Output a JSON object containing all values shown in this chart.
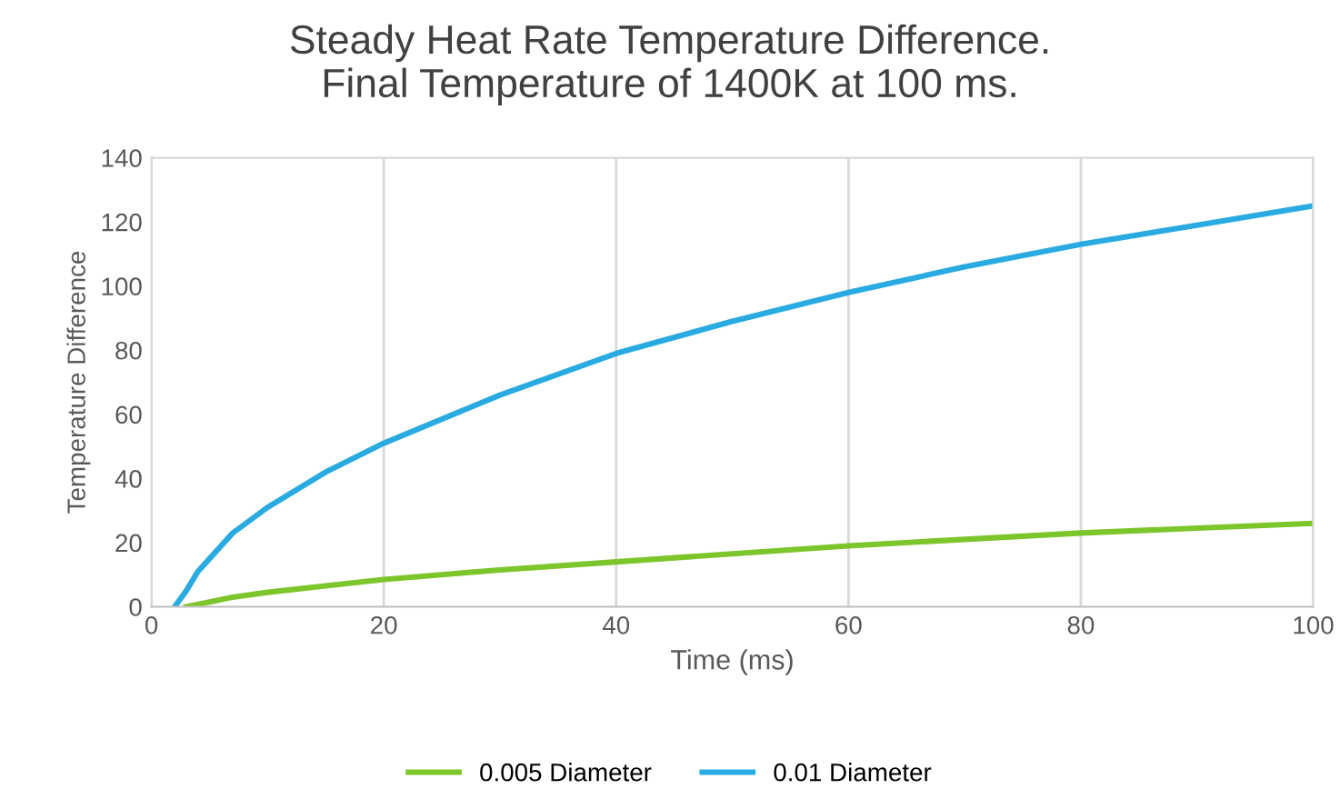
{
  "chart_data": {
    "type": "line",
    "title": "Steady Heat Rate Temperature Difference.\nFinal Temperature of 1400K at 100 ms.",
    "xlabel": "Time (ms)",
    "ylabel": "Temperature Difference",
    "xlim": [
      0,
      100
    ],
    "xticks": [
      0,
      20,
      40,
      60,
      80,
      100
    ],
    "ylim": [
      0,
      140
    ],
    "yticks": [
      0,
      20,
      40,
      60,
      80,
      100,
      120,
      140
    ],
    "grid": "x",
    "legend": "bottom",
    "marker": "none",
    "line_style": "solid",
    "series": [
      {
        "name": "0.005 Diameter",
        "color": "#7cc52b",
        "x": [
          3,
          5,
          7,
          10,
          15,
          20,
          30,
          40,
          50,
          60,
          70,
          80,
          90,
          100
        ],
        "values": [
          0,
          1.5,
          3,
          4.5,
          6.5,
          8.5,
          11.5,
          14,
          16.5,
          19,
          21,
          23,
          24.5,
          26
        ]
      },
      {
        "name": "0.01 Diameter",
        "color": "#29abe2",
        "x": [
          2,
          3,
          4,
          5,
          7,
          10,
          15,
          20,
          30,
          40,
          50,
          60,
          70,
          80,
          90,
          100
        ],
        "values": [
          0,
          5,
          11,
          15,
          23,
          31,
          42,
          51,
          66,
          79,
          89,
          98,
          106,
          113,
          119,
          125
        ]
      }
    ]
  }
}
